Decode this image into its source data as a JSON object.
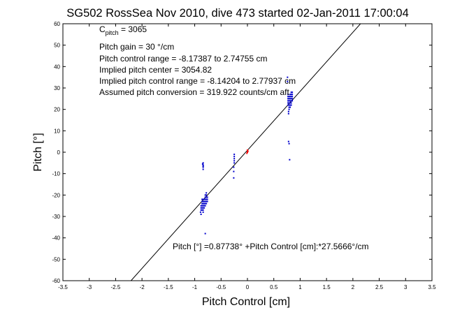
{
  "chart_data": {
    "type": "scatter",
    "title": "SG502 RossSea Nov 2010, dive 473 started 02-Jan-2011 17:00:04",
    "xlabel": "Pitch Control [cm]",
    "ylabel": "Pitch [°]",
    "xlim": [
      -3.5,
      3.5
    ],
    "ylim": [
      -60,
      60
    ],
    "xticks": [
      -3.5,
      -3,
      -2.5,
      -2,
      -1.5,
      -1,
      -0.5,
      0,
      0.5,
      1,
      1.5,
      2,
      2.5,
      3,
      3.5
    ],
    "yticks": [
      -60,
      -50,
      -40,
      -30,
      -20,
      -10,
      0,
      10,
      20,
      30,
      40,
      50,
      60
    ],
    "grid": false,
    "legend": "none",
    "annotations": {
      "cpitch_prefix": "C",
      "cpitch_sub": "pitch",
      "cpitch_value": " = 3065",
      "gain": "Pitch gain = 30 °/cm",
      "control_range": "Pitch control range = -8.17387 to 2.74755 cm",
      "implied_center": "Implied pitch center = 3054.82",
      "implied_range": "Implied pitch control range = -8.14204 to 2.77937 cm",
      "conversion": "Assumed pitch conversion = 319.922 counts/cm aft",
      "fit_equation": "Pitch [°] =0.87738° +Pitch Control [cm]:*27.5666°/cm"
    },
    "fit_line": {
      "intercept": 0.87738,
      "slope": 27.5666,
      "color": "#000000"
    },
    "series": [
      {
        "color": "#0000cc",
        "points": [
          [
            -0.84,
            -5
          ],
          [
            -0.84,
            -6
          ],
          [
            -0.84,
            -7
          ],
          [
            -0.84,
            -8
          ],
          [
            -0.85,
            -5.5
          ],
          [
            -0.84,
            -6.5
          ],
          [
            -0.86,
            -22
          ],
          [
            -0.86,
            -23
          ],
          [
            -0.86,
            -24
          ],
          [
            -0.86,
            -25
          ],
          [
            -0.86,
            -26
          ],
          [
            -0.86,
            -27
          ],
          [
            -0.84,
            -22
          ],
          [
            -0.84,
            -23
          ],
          [
            -0.84,
            -24
          ],
          [
            -0.84,
            -25
          ],
          [
            -0.84,
            -26
          ],
          [
            -0.84,
            -27
          ],
          [
            -0.84,
            -28
          ],
          [
            -0.82,
            -22
          ],
          [
            -0.82,
            -23
          ],
          [
            -0.82,
            -24
          ],
          [
            -0.82,
            -25
          ],
          [
            -0.82,
            -26
          ],
          [
            -0.8,
            -20
          ],
          [
            -0.8,
            -21
          ],
          [
            -0.8,
            -22
          ],
          [
            -0.8,
            -23
          ],
          [
            -0.8,
            -24
          ],
          [
            -0.8,
            -25
          ],
          [
            -0.78,
            -19
          ],
          [
            -0.78,
            -20
          ],
          [
            -0.78,
            -21
          ],
          [
            -0.78,
            -22
          ],
          [
            -0.78,
            -23
          ],
          [
            -0.78,
            -24
          ],
          [
            -0.76,
            -21
          ],
          [
            -0.76,
            -22
          ],
          [
            -0.76,
            -23
          ],
          [
            -0.88,
            -25
          ],
          [
            -0.88,
            -26
          ],
          [
            -0.88,
            -27
          ],
          [
            -0.89,
            -28
          ],
          [
            -0.88,
            -29
          ],
          [
            -0.8,
            -38
          ],
          [
            -0.25,
            -1
          ],
          [
            -0.25,
            -2
          ],
          [
            -0.25,
            -3
          ],
          [
            -0.25,
            -4
          ],
          [
            -0.25,
            -5
          ],
          [
            -0.26,
            -7
          ],
          [
            -0.26,
            -9
          ],
          [
            -0.26,
            -12
          ],
          [
            0.77,
            22
          ],
          [
            0.77,
            23
          ],
          [
            0.77,
            24
          ],
          [
            0.77,
            25
          ],
          [
            0.77,
            26
          ],
          [
            0.77,
            27
          ],
          [
            0.79,
            20
          ],
          [
            0.79,
            21
          ],
          [
            0.79,
            22
          ],
          [
            0.79,
            23
          ],
          [
            0.79,
            24
          ],
          [
            0.79,
            25
          ],
          [
            0.79,
            26
          ],
          [
            0.81,
            21
          ],
          [
            0.81,
            22
          ],
          [
            0.81,
            23
          ],
          [
            0.81,
            24
          ],
          [
            0.81,
            25
          ],
          [
            0.81,
            26
          ],
          [
            0.81,
            27
          ],
          [
            0.83,
            22
          ],
          [
            0.83,
            23
          ],
          [
            0.83,
            24
          ],
          [
            0.83,
            25
          ],
          [
            0.83,
            26
          ],
          [
            0.83,
            27
          ],
          [
            0.83,
            28
          ],
          [
            0.85,
            24
          ],
          [
            0.85,
            25
          ],
          [
            0.85,
            26
          ],
          [
            0.85,
            27
          ],
          [
            0.85,
            28
          ],
          [
            0.78,
            18
          ],
          [
            0.78,
            19
          ],
          [
            0.76,
            33
          ],
          [
            0.76,
            35
          ],
          [
            0.78,
            5
          ],
          [
            0.79,
            4
          ],
          [
            0.8,
            -3.5
          ]
        ]
      },
      {
        "color": "#ff0000",
        "points": [
          [
            0.0,
            0
          ],
          [
            0.01,
            0.5
          ],
          [
            -0.01,
            -0.5
          ],
          [
            0.0,
            1
          ]
        ]
      }
    ]
  }
}
